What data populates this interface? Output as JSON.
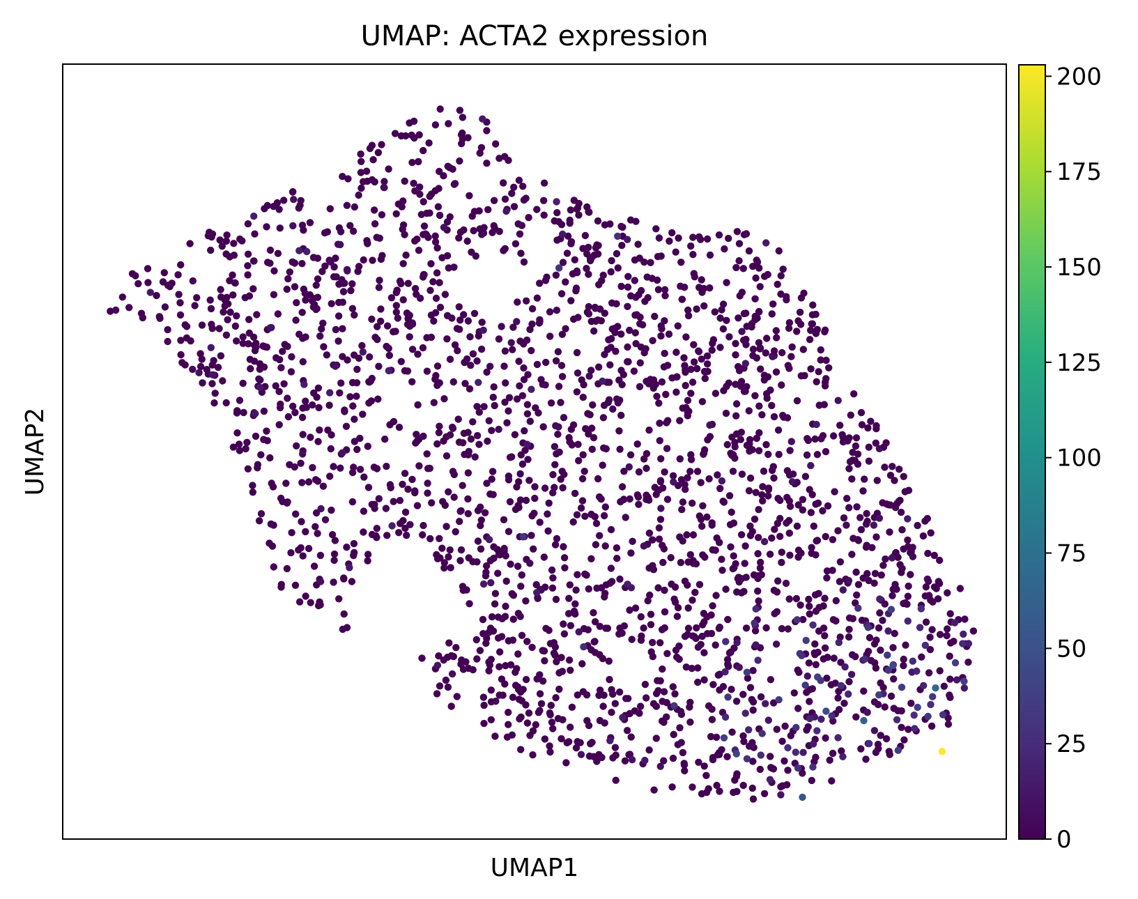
{
  "chart_data": {
    "type": "scatter",
    "title": "UMAP: ACTA2 expression",
    "xlabel": "UMAP1",
    "ylabel": "UMAP2",
    "xlim": [
      0,
      100
    ],
    "ylim": [
      0,
      100
    ],
    "xticks": [],
    "yticks": [],
    "grid": false,
    "legend": "none",
    "colormap": "viridis",
    "colorbar": {
      "label": "",
      "range": [
        0,
        203
      ],
      "ticks": [
        0,
        25,
        50,
        75,
        100,
        125,
        150,
        175,
        200
      ],
      "tick_labels": [
        "0",
        "25",
        "50",
        "75",
        "100",
        "125",
        "150",
        "175",
        "200"
      ]
    },
    "series": [
      {
        "points_description_x_range": [
          4,
          97
        ],
        "points_description_y_range": [
          5,
          96
        ],
        "approximate_point_count": 2500,
        "max_value": 203,
        "typical_value": 0,
        "highlighted_points": [
          {
            "x": 93.2,
            "y": 11.3,
            "value": 203
          },
          {
            "x": 92.5,
            "y": 19.5,
            "value": 70
          },
          {
            "x": 84.9,
            "y": 15.3,
            "value": 65
          },
          {
            "x": 78.4,
            "y": 5.4,
            "value": 55
          },
          {
            "x": 80.9,
            "y": 16.5,
            "value": 48
          },
          {
            "x": 88.0,
            "y": 22.4,
            "value": 45
          },
          {
            "x": 90.6,
            "y": 17.0,
            "value": 40
          },
          {
            "x": 71.4,
            "y": 11.0,
            "value": 42
          },
          {
            "x": 86.5,
            "y": 18.6,
            "value": 38
          },
          {
            "x": 52.6,
            "y": 73.7,
            "value": 30
          },
          {
            "x": 58.8,
            "y": 77.8,
            "value": 28
          },
          {
            "x": 48.8,
            "y": 39.0,
            "value": 30
          },
          {
            "x": 64.8,
            "y": 17.2,
            "value": 32
          },
          {
            "x": 55.2,
            "y": 24.8,
            "value": 25
          }
        ]
      }
    ]
  }
}
